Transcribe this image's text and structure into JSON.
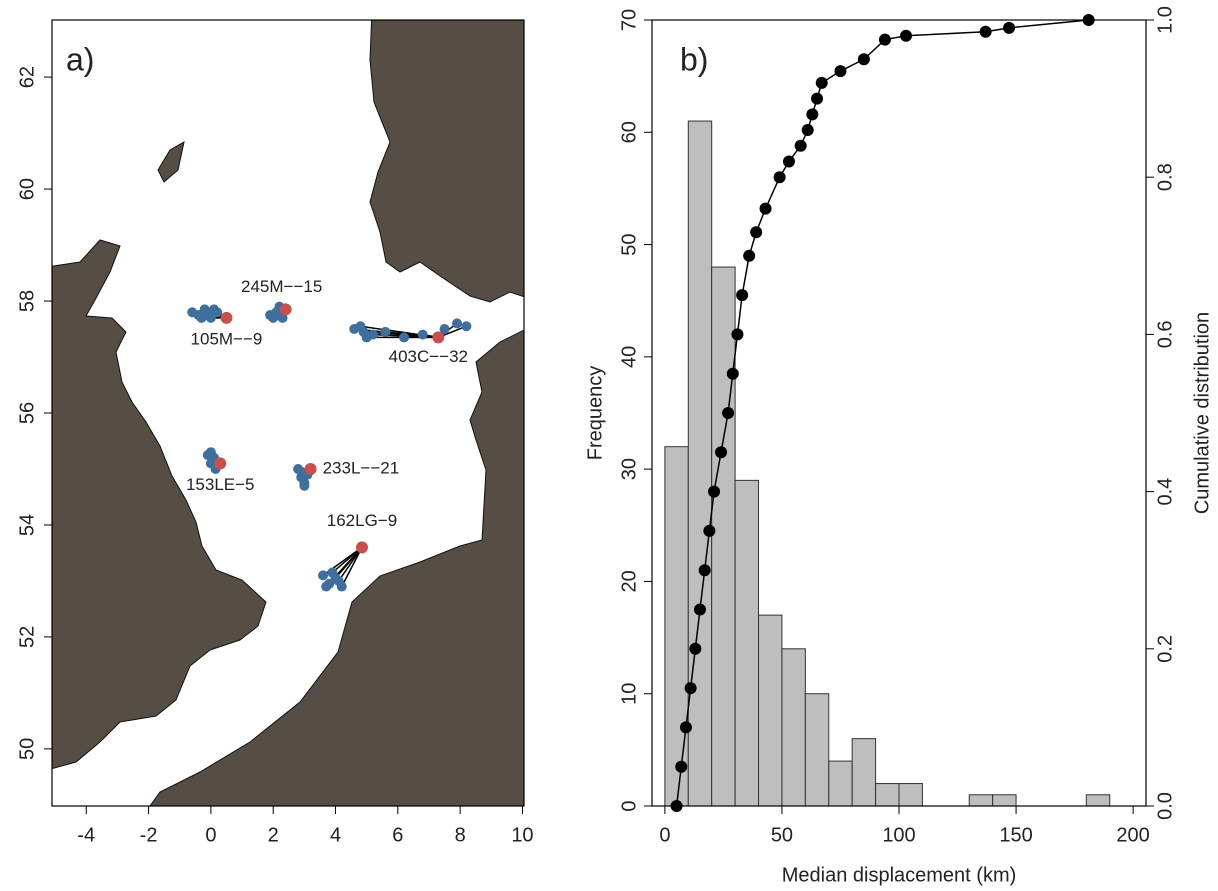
{
  "chart_data": [
    {
      "type": "map",
      "label": "a)",
      "xlim": [
        -5.1,
        10.05
      ],
      "ylim": [
        48.98,
        63.02
      ],
      "xticks": [
        -4,
        -2,
        0,
        2,
        4,
        6,
        8,
        10
      ],
      "yticks": [
        50,
        52,
        54,
        56,
        58,
        60,
        62
      ],
      "release_color": "#c8504a",
      "recapture_color": "#3f6f9c",
      "sites": [
        {
          "label": "105M−−9",
          "x": 0.5,
          "y": 57.7,
          "recaptures": {
            "x": [
              -0.6,
              -0.4,
              -0.2,
              0,
              0.2,
              -0.3,
              -0.1,
              0.1
            ],
            "y": [
              57.8,
              57.75,
              57.85,
              57.7,
              57.8,
              57.7,
              57.75,
              57.85
            ]
          }
        },
        {
          "label": "245M−−15",
          "x": 2.4,
          "y": 57.85,
          "recaptures": {
            "x": [
              1.9,
              2.1,
              2.3,
              2.2,
              2.0
            ],
            "y": [
              57.75,
              57.8,
              57.7,
              57.9,
              57.7
            ]
          }
        },
        {
          "label": "403C−−32",
          "x": 7.3,
          "y": 57.35,
          "recaptures": {
            "x": [
              4.6,
              4.9,
              5.2,
              5.6,
              6.2,
              6.8,
              7.5,
              7.9,
              8.2,
              4.8,
              5.0
            ],
            "y": [
              57.5,
              57.45,
              57.4,
              57.45,
              57.35,
              57.4,
              57.5,
              57.6,
              57.55,
              57.55,
              57.35
            ]
          }
        },
        {
          "label": "153LE−5",
          "x": 0.3,
          "y": 55.1,
          "recaptures": {
            "x": [
              -0.1,
              0.0,
              0.1,
              0.2,
              0.0,
              0.15
            ],
            "y": [
              55.25,
              55.1,
              55.2,
              55.1,
              55.3,
              55.0
            ]
          }
        },
        {
          "label": "233L−−21",
          "x": 3.2,
          "y": 55.0,
          "recaptures": {
            "x": [
              2.8,
              2.9,
              3.0,
              3.1,
              2.9,
              3.0
            ],
            "y": [
              55.0,
              54.85,
              54.75,
              54.9,
              54.95,
              54.7
            ]
          }
        },
        {
          "label": "162LG−9",
          "x": 4.85,
          "y": 53.6,
          "recaptures": {
            "x": [
              3.6,
              3.8,
              4.0,
              4.2,
              3.7,
              3.9,
              4.1
            ],
            "y": [
              53.1,
              52.95,
              53.05,
              52.9,
              52.9,
              53.15,
              53.0
            ]
          }
        }
      ]
    },
    {
      "type": "histogram",
      "label": "b)",
      "xlabel": "Median displacement (km)",
      "ylabel": "Frequency",
      "y2label": "Cumulative distribution",
      "bins": [
        0,
        10,
        20,
        30,
        40,
        50,
        60,
        70,
        80,
        90,
        100,
        110,
        120,
        130,
        140,
        150,
        160,
        170,
        180,
        190
      ],
      "counts": [
        32,
        61,
        48,
        29,
        17,
        14,
        10,
        4,
        6,
        2,
        2,
        0,
        0,
        1,
        1,
        0,
        0,
        0,
        1
      ],
      "color": "#bebebe",
      "xlim": [
        -5.5,
        205.5
      ],
      "ylim": [
        0,
        70
      ],
      "y2lim": [
        0,
        1
      ],
      "xticks": [
        0,
        50,
        100,
        150,
        200
      ],
      "yticks": [
        0,
        10,
        20,
        30,
        40,
        50,
        60,
        70
      ],
      "y2ticks": [
        {
          "value": 0,
          "label": "0.0"
        },
        0.2,
        0.4,
        0.6,
        0.8,
        {
          "value": 1,
          "label": "1.0"
        }
      ],
      "series": [
        {
          "axis": "y2",
          "color": "#000000",
          "x": [
            5,
            7,
            9,
            11,
            13,
            15,
            17,
            19,
            21,
            24,
            27,
            29,
            31,
            33,
            36,
            39,
            43,
            49,
            53,
            58,
            61,
            63,
            65,
            67,
            75,
            85,
            94,
            103,
            137,
            147,
            181
          ],
          "values": [
            0,
            0.05,
            0.1,
            0.15,
            0.2,
            0.25,
            0.3,
            0.35,
            0.4,
            0.45,
            0.5,
            0.55,
            0.6,
            0.65,
            0.7,
            0.73,
            0.76,
            0.8,
            0.82,
            0.84,
            0.86,
            0.88,
            0.9,
            0.92,
            0.935,
            0.95,
            0.975,
            0.98,
            0.985,
            0.99,
            1.0
          ]
        }
      ]
    }
  ]
}
